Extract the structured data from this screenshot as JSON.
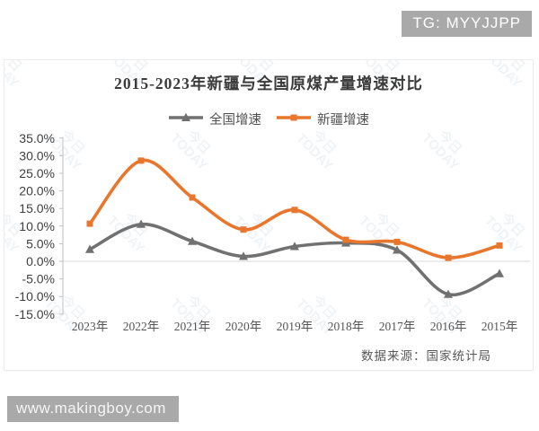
{
  "badges": {
    "tg": "TG: MYYJJPP",
    "site": "www.makingboy.com"
  },
  "chart": {
    "source": "数据来源：国家统计局",
    "watermark": "今日\nTODAY"
  },
  "chart_data": {
    "type": "line",
    "title": "2015-2023年新疆与全国原煤产量增速对比",
    "categories": [
      "2023年",
      "2022年",
      "2021年",
      "2020年",
      "2019年",
      "2018年",
      "2017年",
      "2016年",
      "2015年"
    ],
    "series": [
      {
        "name": "全国增速",
        "color": "#717171",
        "marker": "triangle",
        "values": [
          3.4,
          10.5,
          5.7,
          1.4,
          4.2,
          5.2,
          3.2,
          -9.4,
          -3.5
        ]
      },
      {
        "name": "新疆增速",
        "color": "#e8762c",
        "marker": "square",
        "values": [
          10.7,
          28.6,
          18.1,
          9.0,
          14.6,
          6.1,
          5.5,
          1.0,
          4.5
        ]
      }
    ],
    "ylim": [
      -15,
      35
    ],
    "ytick_step": 5,
    "yticks": [
      {
        "v": 35,
        "label": "35.0%"
      },
      {
        "v": 30,
        "label": "30.0%"
      },
      {
        "v": 25,
        "label": "25.0%"
      },
      {
        "v": 20,
        "label": "20.0%"
      },
      {
        "v": 15,
        "label": "15.0%"
      },
      {
        "v": 10,
        "label": "10.0%"
      },
      {
        "v": 5,
        "label": "5.0%"
      },
      {
        "v": 0,
        "label": "0.0%"
      },
      {
        "v": -5,
        "label": "-5.0%"
      },
      {
        "v": -10,
        "label": "-10.0%"
      },
      {
        "v": -15,
        "label": "-15.0%"
      }
    ],
    "grid": "zero-line-only",
    "legend_position": "top",
    "axis_color": "#bfbfbf",
    "zero_line_color": "#d9d9d9"
  }
}
